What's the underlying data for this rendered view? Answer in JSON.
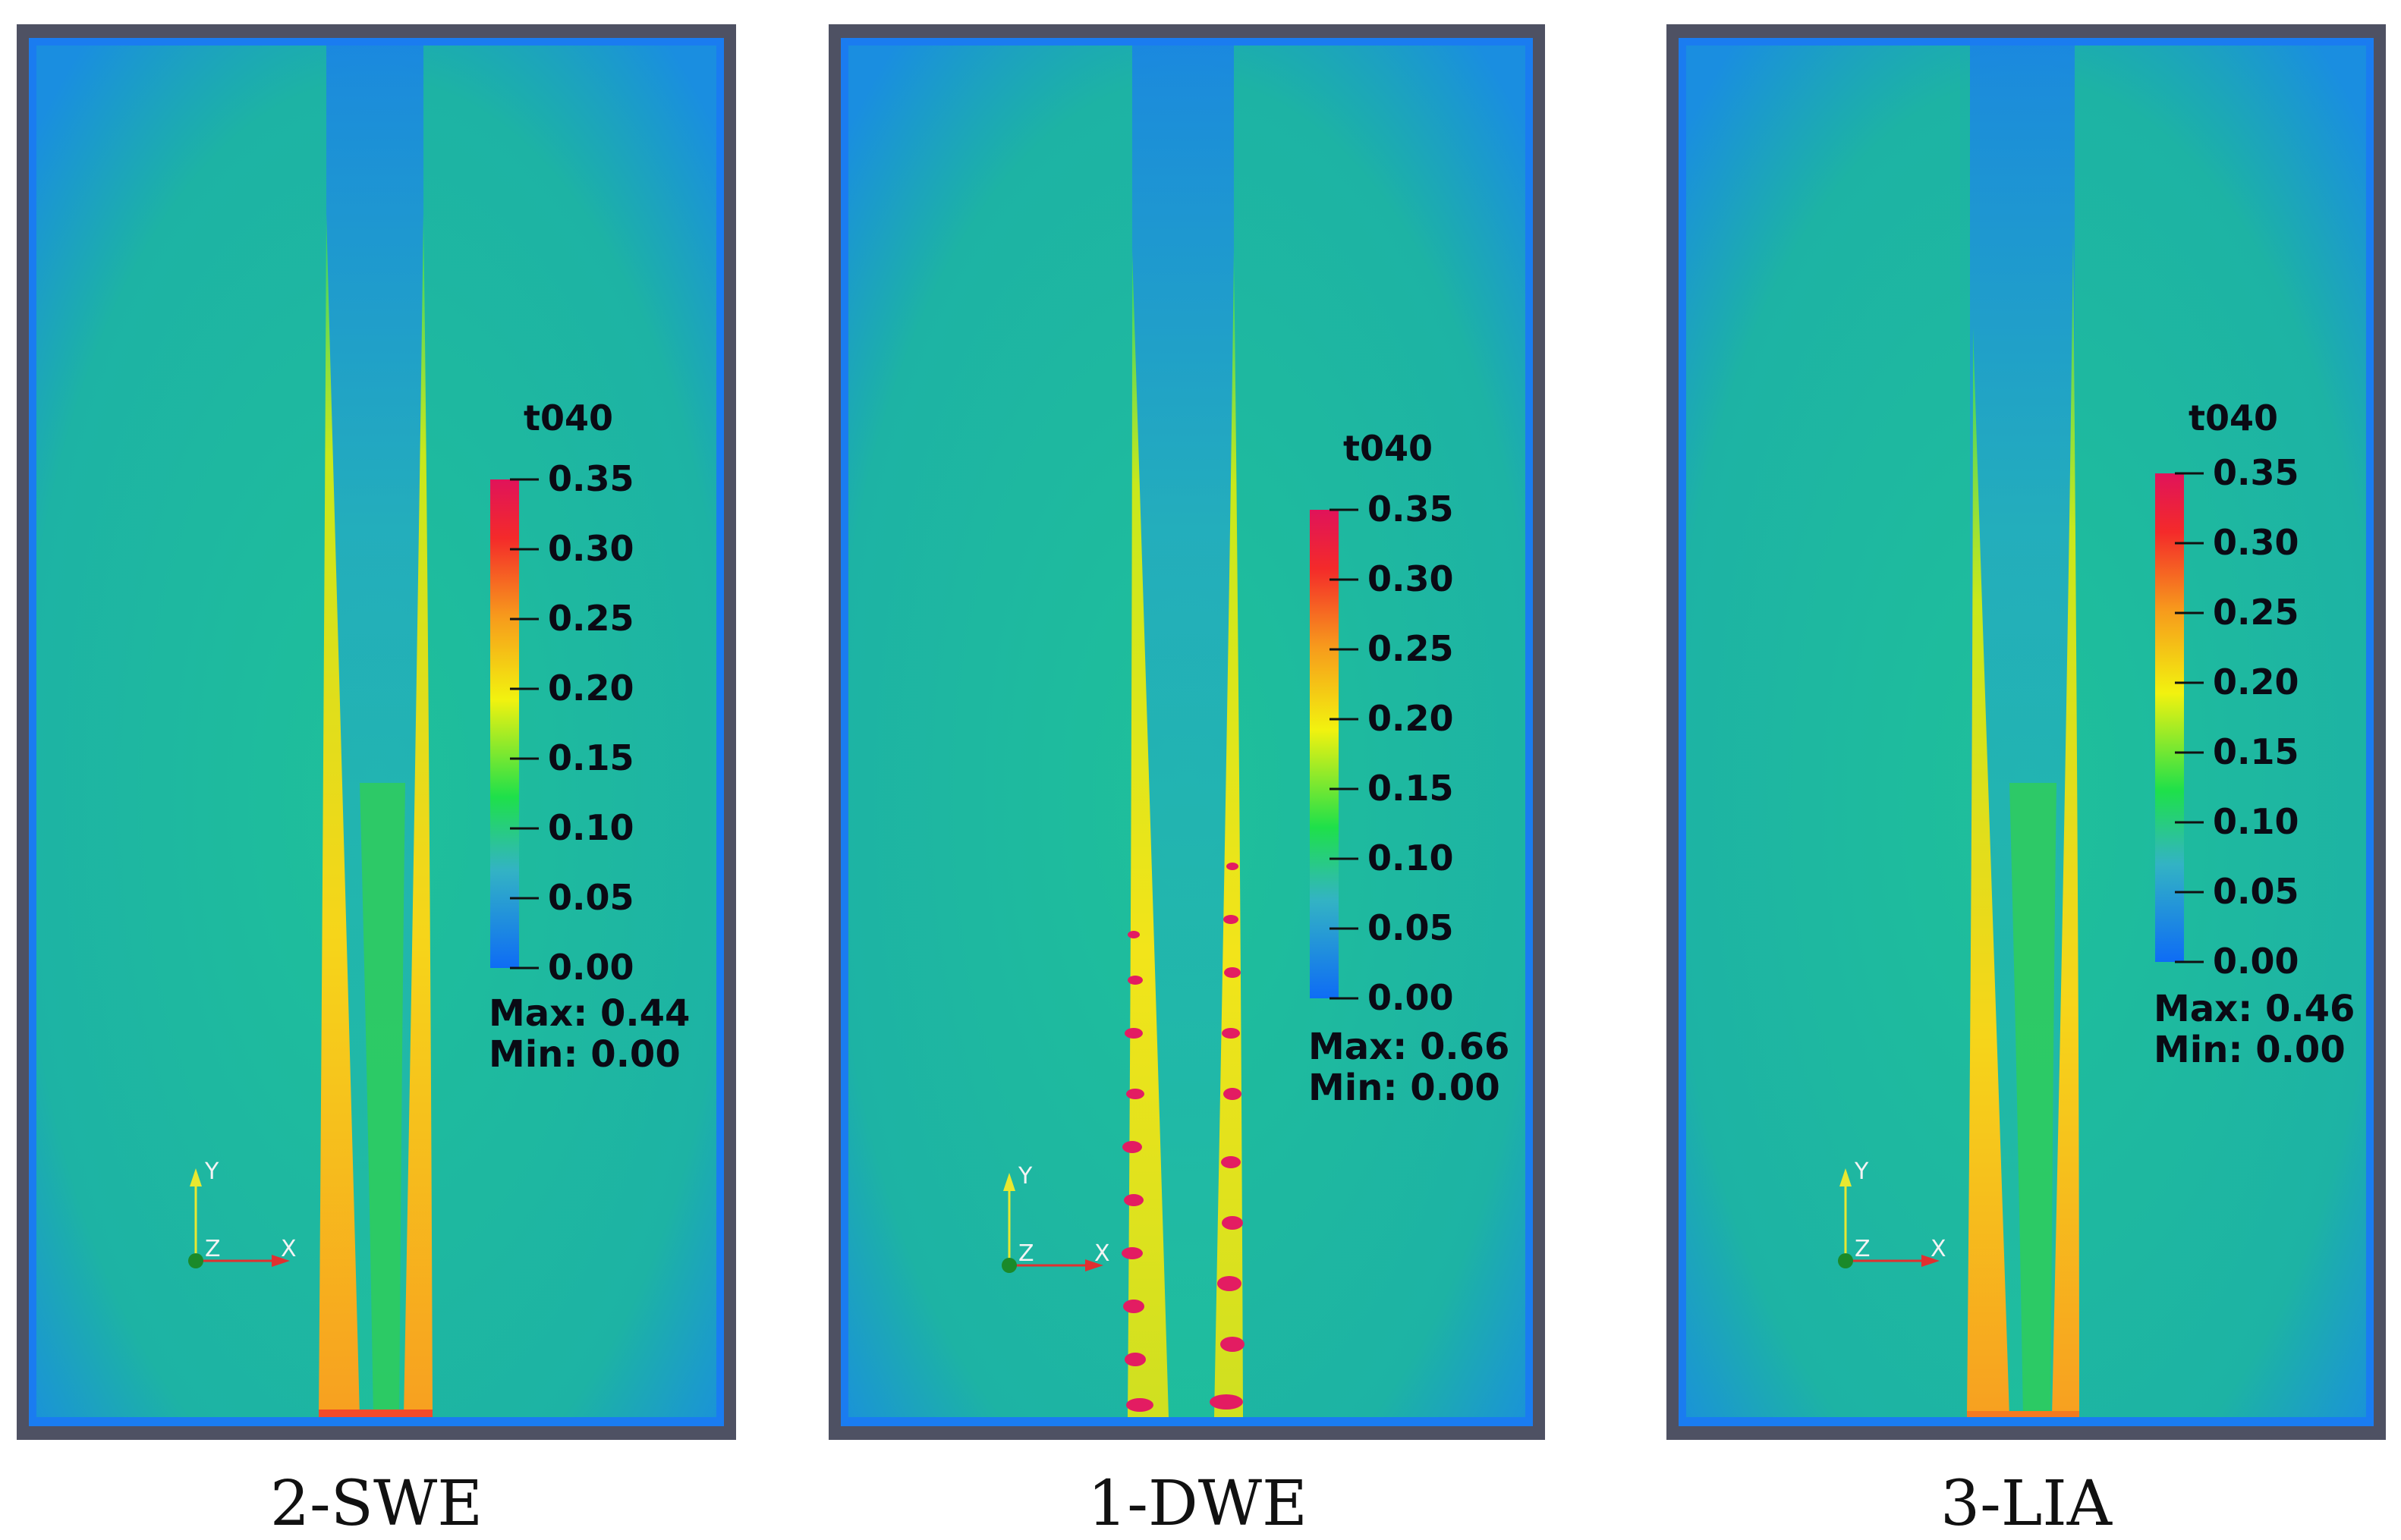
{
  "panels": [
    {
      "caption": "2-SWE",
      "colorbar": {
        "title": "t040",
        "ticks": [
          "0.35",
          "0.30",
          "0.25",
          "0.20",
          "0.15",
          "0.10",
          "0.05",
          "0.00"
        ],
        "max_label": "Max: 0.44",
        "min_label": "Min: 0.00"
      },
      "axes": {
        "y": "Y",
        "z": "Z",
        "x": "X"
      }
    },
    {
      "caption": "1-DWE",
      "colorbar": {
        "title": "t040",
        "ticks": [
          "0.35",
          "0.30",
          "0.25",
          "0.20",
          "0.15",
          "0.10",
          "0.05",
          "0.00"
        ],
        "max_label": "Max: 0.66",
        "min_label": "Min: 0.00"
      },
      "axes": {
        "y": "Y",
        "z": "Z",
        "x": "X"
      }
    },
    {
      "caption": "3-LIA",
      "colorbar": {
        "title": "t040",
        "ticks": [
          "0.35",
          "0.30",
          "0.25",
          "0.20",
          "0.15",
          "0.10",
          "0.05",
          "0.00"
        ],
        "max_label": "Max: 0.46",
        "min_label": "Min: 0.00"
      },
      "axes": {
        "y": "Y",
        "z": "Z",
        "x": "X"
      }
    }
  ],
  "colors": {
    "frame": "#4e5163",
    "background": "#1fc09a",
    "edge": "#1a7cf0",
    "jet_low": "#22b7b0",
    "wake_core": "#30cc55",
    "colormap": [
      "#0e6cf5",
      "#33b3c4",
      "#1ee04a",
      "#f2f20f",
      "#f79a1c",
      "#f42a2a",
      "#e0135a"
    ]
  }
}
